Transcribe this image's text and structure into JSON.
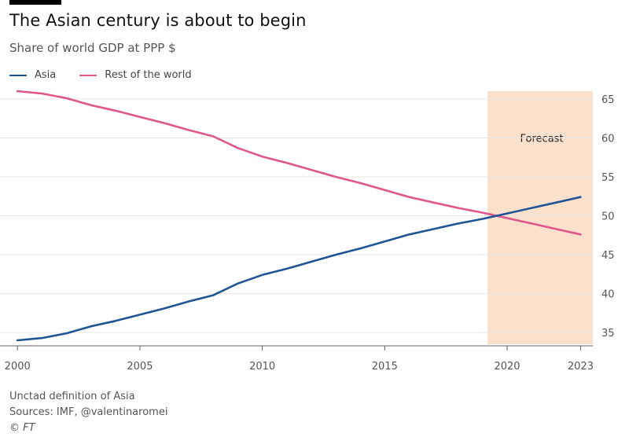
{
  "header": {
    "title": "The Asian century is about to begin",
    "subtitle": "Share of world GDP at PPP $"
  },
  "footer": {
    "note": "Unctad definition of Asia",
    "sources": "Sources: IMF, @valentinaromei",
    "credit": "© FT"
  },
  "colors": {
    "asia": "#1f5596",
    "rest": "#e0568a",
    "forecast_band": "#fbe0cc",
    "grid": "#ebe6e1"
  },
  "chart_data": {
    "type": "line",
    "title": "The Asian century is about to begin",
    "subtitle": "Share of world GDP at PPP $",
    "xlabel": "",
    "ylabel": "",
    "xlim": [
      1999.8,
      2023.5
    ],
    "ylim": [
      33.5,
      66
    ],
    "x_ticks": [
      2000,
      2005,
      2010,
      2015,
      2020,
      2023
    ],
    "y_ticks": [
      35,
      40,
      45,
      50,
      55,
      60,
      65
    ],
    "grid": "horizontal",
    "legend_position": "top-left",
    "forecast_region": {
      "label": "Forecast",
      "from": 2019.2,
      "to": 2023.5
    },
    "x": [
      2000,
      2001,
      2002,
      2003,
      2004,
      2005,
      2006,
      2007,
      2008,
      2009,
      2010,
      2011,
      2012,
      2013,
      2014,
      2015,
      2016,
      2017,
      2018,
      2019,
      2020,
      2021,
      2022,
      2023
    ],
    "series": [
      {
        "name": "Asia",
        "values": [
          34.0,
          34.3,
          34.9,
          35.8,
          36.5,
          37.3,
          38.1,
          39.0,
          39.8,
          41.3,
          42.4,
          43.2,
          44.1,
          45.0,
          45.8,
          46.7,
          47.6,
          48.3,
          49.0,
          49.6,
          50.3,
          51.0,
          51.7,
          52.4
        ]
      },
      {
        "name": "Rest of the world",
        "values": [
          66.0,
          65.7,
          65.1,
          64.2,
          63.5,
          62.7,
          61.9,
          61.0,
          60.2,
          58.7,
          57.6,
          56.8,
          55.9,
          55.0,
          54.2,
          53.3,
          52.4,
          51.7,
          51.0,
          50.4,
          49.7,
          49.0,
          48.3,
          47.6
        ]
      }
    ]
  }
}
